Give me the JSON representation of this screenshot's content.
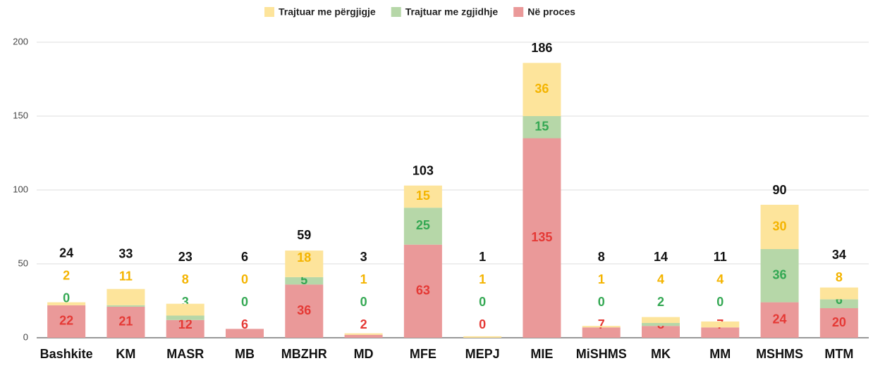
{
  "chart_data": {
    "type": "stacked_bar",
    "categories": [
      "Bashkite",
      "KM",
      "MASR",
      "MB",
      "MBZHR",
      "MD",
      "MFE",
      "MEPJ",
      "MIE",
      "MiSHMS",
      "MK",
      "MM",
      "MSHMS",
      "MTM"
    ],
    "series": [
      {
        "name": "Në proces",
        "color": "#ea9999",
        "label_color": "#e53935",
        "values": [
          22,
          21,
          12,
          6,
          36,
          2,
          63,
          0,
          135,
          7,
          8,
          7,
          24,
          20
        ]
      },
      {
        "name": "Trajtuar me zgjidhje",
        "color": "#b6d7a8",
        "label_color": "#34a853",
        "values": [
          0,
          1,
          3,
          0,
          5,
          0,
          25,
          0,
          15,
          0,
          2,
          0,
          36,
          6
        ]
      },
      {
        "name": "Trajtuar me përgjigje",
        "color": "#fde49b",
        "label_color": "#f4b400",
        "values": [
          2,
          11,
          8,
          0,
          18,
          1,
          15,
          1,
          36,
          1,
          4,
          4,
          30,
          8
        ]
      }
    ],
    "totals": [
      24,
      33,
      23,
      6,
      59,
      3,
      103,
      1,
      186,
      8,
      14,
      11,
      90,
      34
    ],
    "legend_order": [
      2,
      1,
      0
    ],
    "ylim": [
      0,
      200
    ],
    "yticks": [
      0,
      50,
      100,
      150,
      200
    ],
    "grid": true,
    "legend": "top"
  }
}
